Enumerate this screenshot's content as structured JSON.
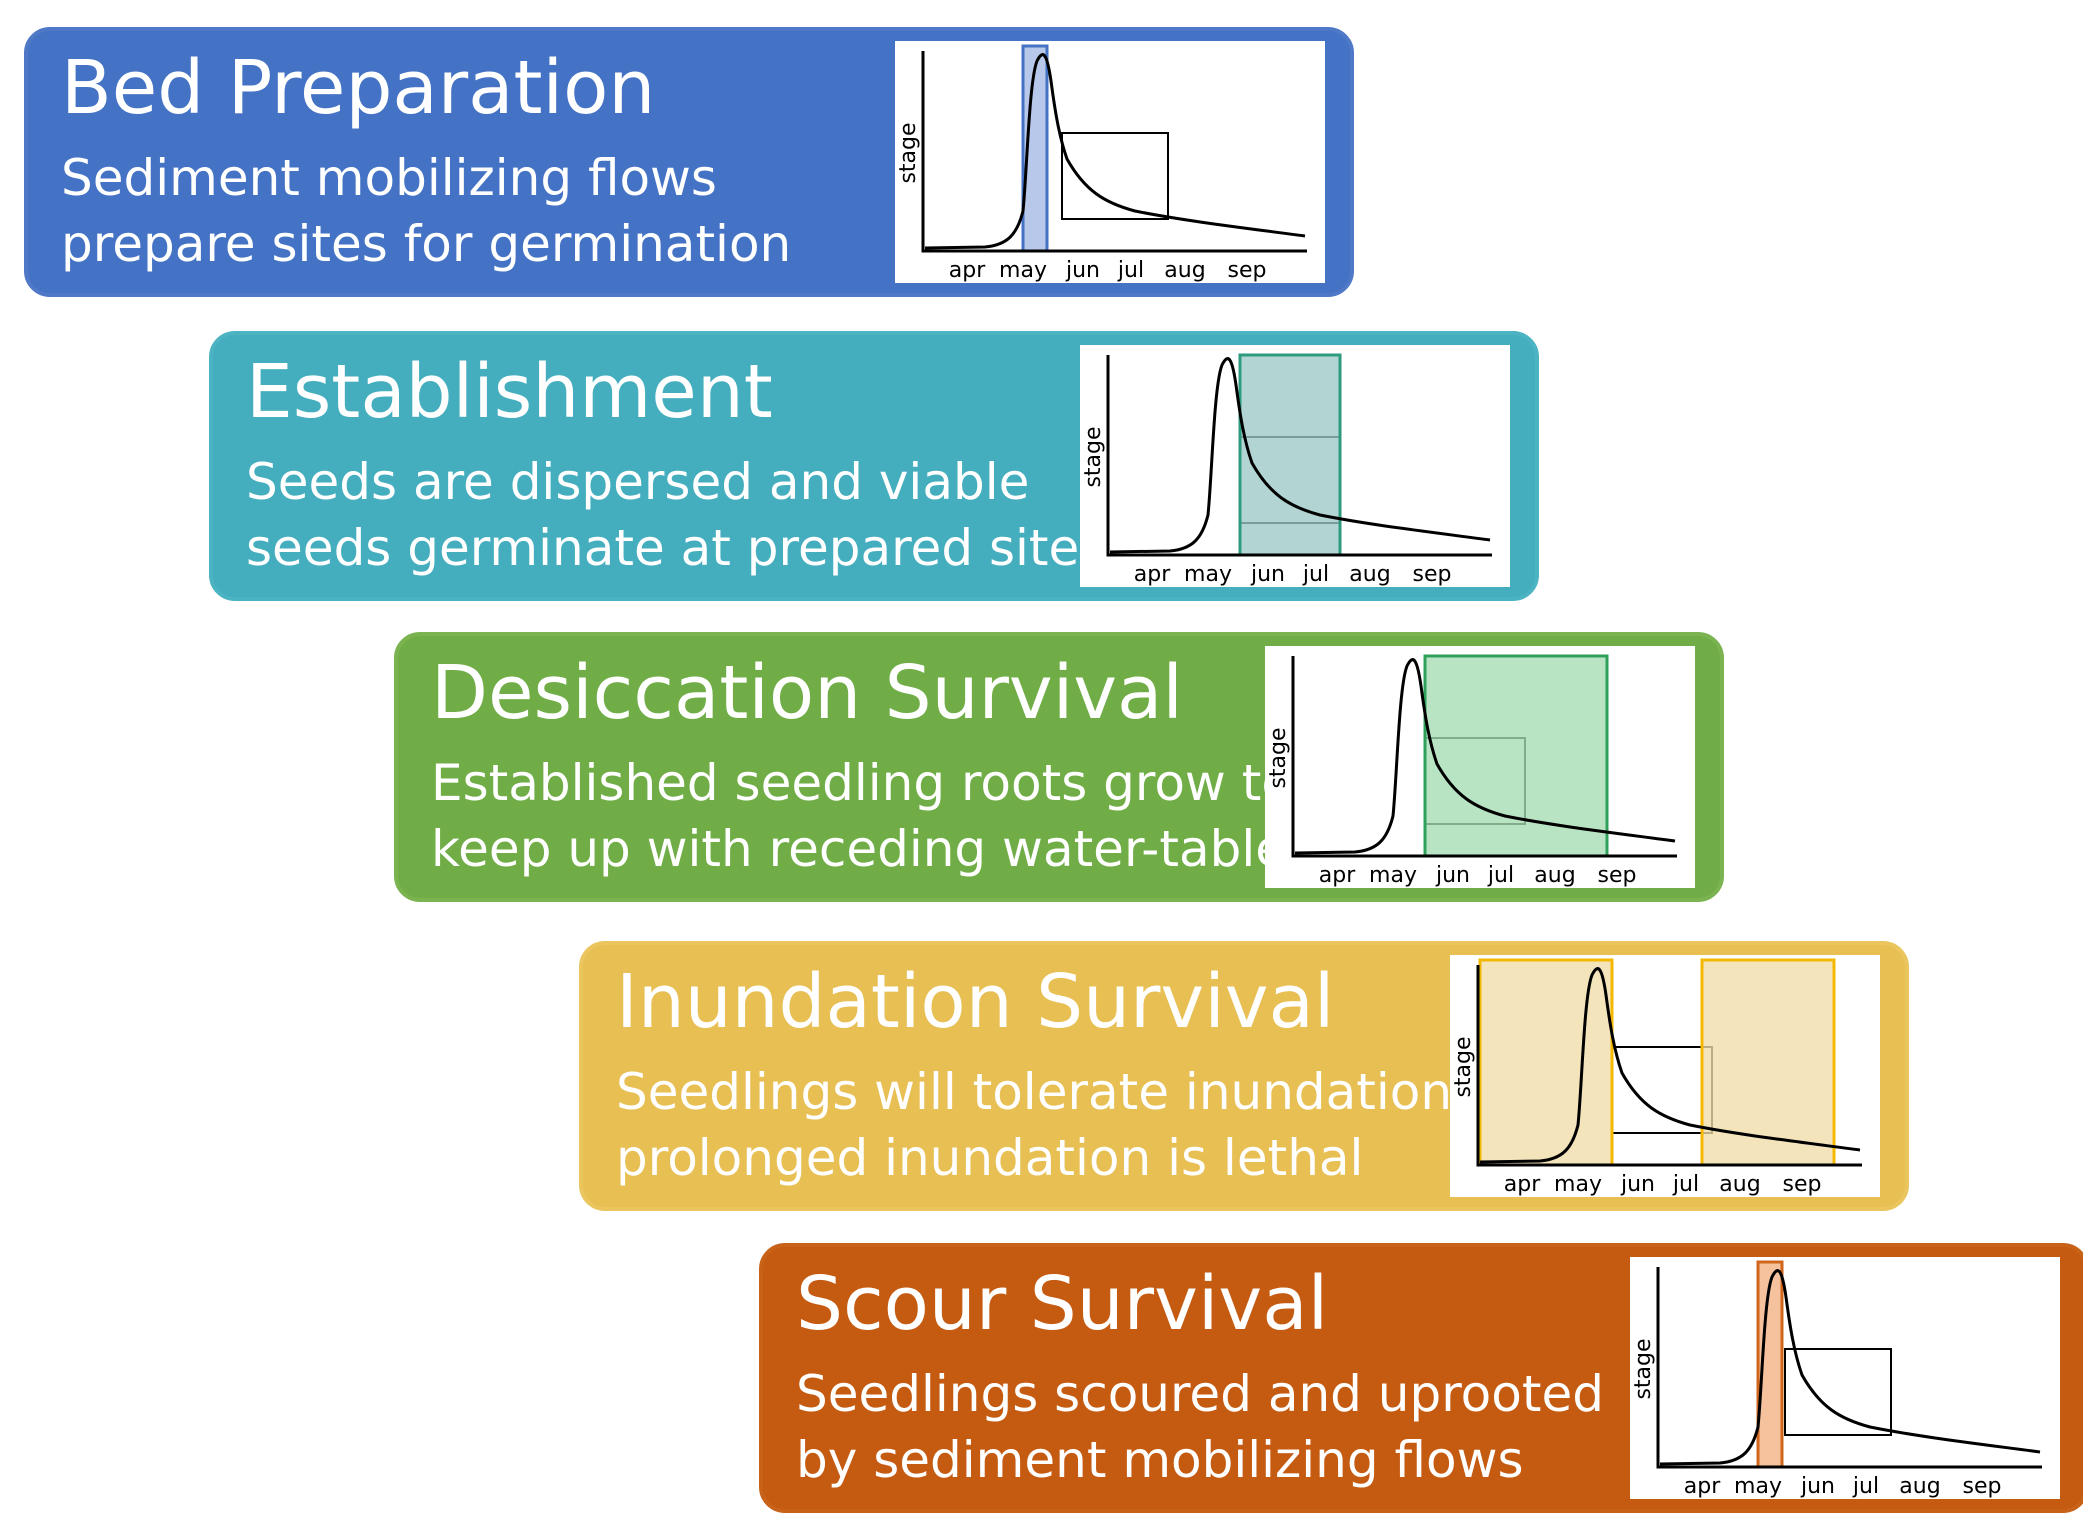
{
  "axis": {
    "ylabel": "stage",
    "months": [
      "apr",
      "may",
      "jun",
      "jul",
      "aug",
      "sep"
    ]
  },
  "stages": [
    {
      "title": "Bed Preparation",
      "line1": "Sediment mobilizing flows",
      "line2": "prepare sites for germination",
      "bg": "#4472C4",
      "border": "#4F78C7",
      "highlight_fill": "#A3B9E4",
      "highlight_stroke": "#4472C4"
    },
    {
      "title": "Establishment",
      "line1": "Seeds are dispersed and viable",
      "line2": "seeds germinate at prepared sites",
      "bg": "#44AEBE",
      "border": "#4BB3C2",
      "highlight_fill": "#9CC9C6",
      "highlight_stroke": "#2E9A7E"
    },
    {
      "title": "Desiccation Survival",
      "line1": "Established seedling roots grow to",
      "line2": "keep up with receding water-table",
      "bg": "#70AD47",
      "border": "#7AB350",
      "highlight_fill": "#A4DDB3",
      "highlight_stroke": "#2EA05A"
    },
    {
      "title": "Inundation Survival",
      "line1": "Seedlings will tolerate inundation,",
      "line2": "prolonged inundation is lethal",
      "bg": "#E8BF53",
      "border": "#EBC55E",
      "highlight_fill": "#F0DCA8",
      "highlight_stroke": "#F5B800"
    },
    {
      "title": "Scour Survival",
      "line1": "Seedlings scoured and uprooted",
      "line2": "by sediment mobilizing flows",
      "bg": "#C55A11",
      "border": "#C86219",
      "highlight_fill": "#F4B183",
      "highlight_stroke": "#D0661C"
    }
  ]
}
